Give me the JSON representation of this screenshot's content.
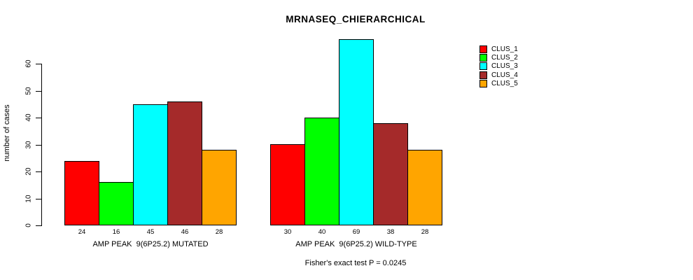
{
  "chart_data": {
    "type": "bar",
    "title": "MRNASEQ_CHIERARCHICAL",
    "ylabel": "number of cases",
    "xlabel": "",
    "yticks": [
      0,
      10,
      20,
      30,
      40,
      50,
      60
    ],
    "ylim": [
      0,
      69
    ],
    "grid": false,
    "legend_position": "right",
    "categories": [
      "AMP PEAK  9(6P25.2) MUTATED",
      "AMP PEAK  9(6P25.2) WILD-TYPE"
    ],
    "series": [
      {
        "name": "CLUS_1",
        "color": "#FF0000",
        "values": [
          24,
          30
        ]
      },
      {
        "name": "CLUS_2",
        "color": "#00FF00",
        "values": [
          16,
          40
        ]
      },
      {
        "name": "CLUS_3",
        "color": "#00FFFF",
        "values": [
          45,
          69
        ]
      },
      {
        "name": "CLUS_4",
        "color": "#A52A2A",
        "values": [
          46,
          38
        ]
      },
      {
        "name": "CLUS_5",
        "color": "#FFA500",
        "values": [
          28,
          28
        ]
      }
    ],
    "annotation": "Fisher's exact test P = 0.0245",
    "colors": {
      "axis": "#000000",
      "background": "#FFFFFF",
      "text": "#000000"
    }
  }
}
